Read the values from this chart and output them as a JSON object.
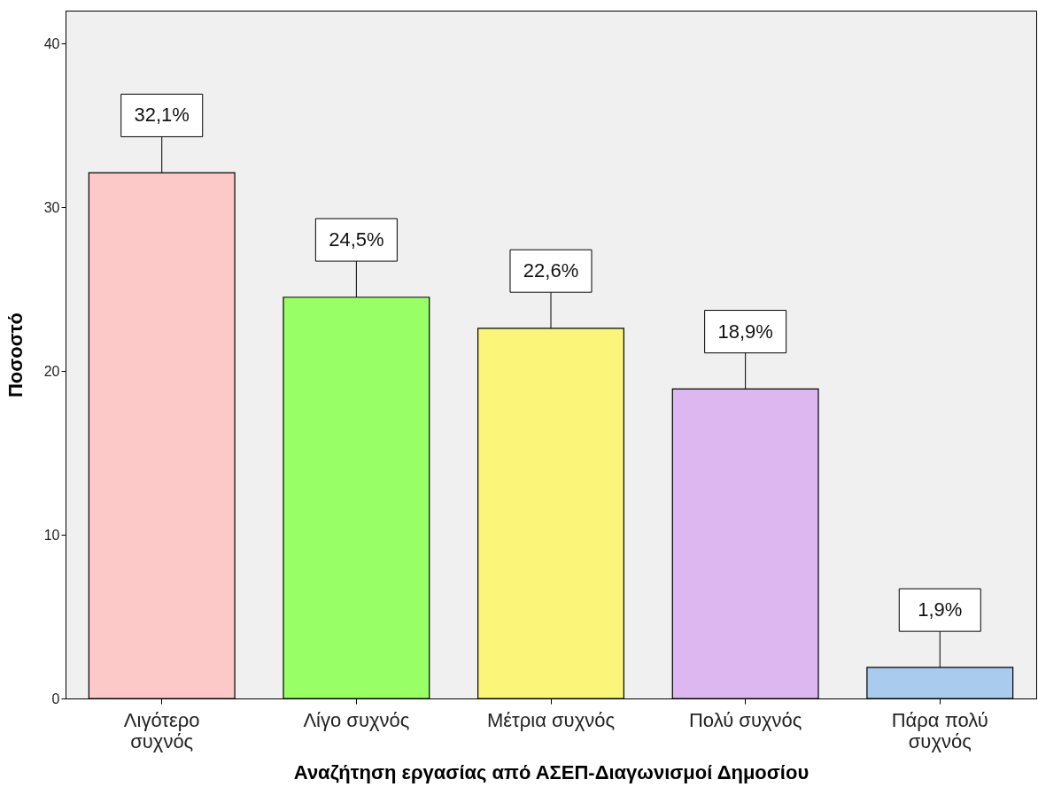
{
  "chart_data": {
    "type": "bar",
    "xlabel": "Αναζήτηση εργασίας από ΑΣΕΠ-Διαγωνισμοί Δημοσίου",
    "ylabel": "Ποσοστό",
    "categories": [
      "Λιγότερο συχνός",
      "Λίγο συχνός",
      "Μέτρια συχνός",
      "Πολύ συχνός",
      "Πάρα πολύ συχνός"
    ],
    "values": [
      32.1,
      24.5,
      22.6,
      18.9,
      1.9
    ],
    "colors": [
      "#fdc8c8",
      "#99ff66",
      "#fbf57a",
      "#ddb8f0",
      "#a8cbee"
    ],
    "value_labels": [
      "32,1%",
      "24,5%",
      "22,6%",
      "18,9%",
      "1,9%"
    ],
    "ylim": [
      0,
      42
    ],
    "yticks": [
      0,
      10,
      20,
      30,
      40
    ],
    "grid": false
  }
}
